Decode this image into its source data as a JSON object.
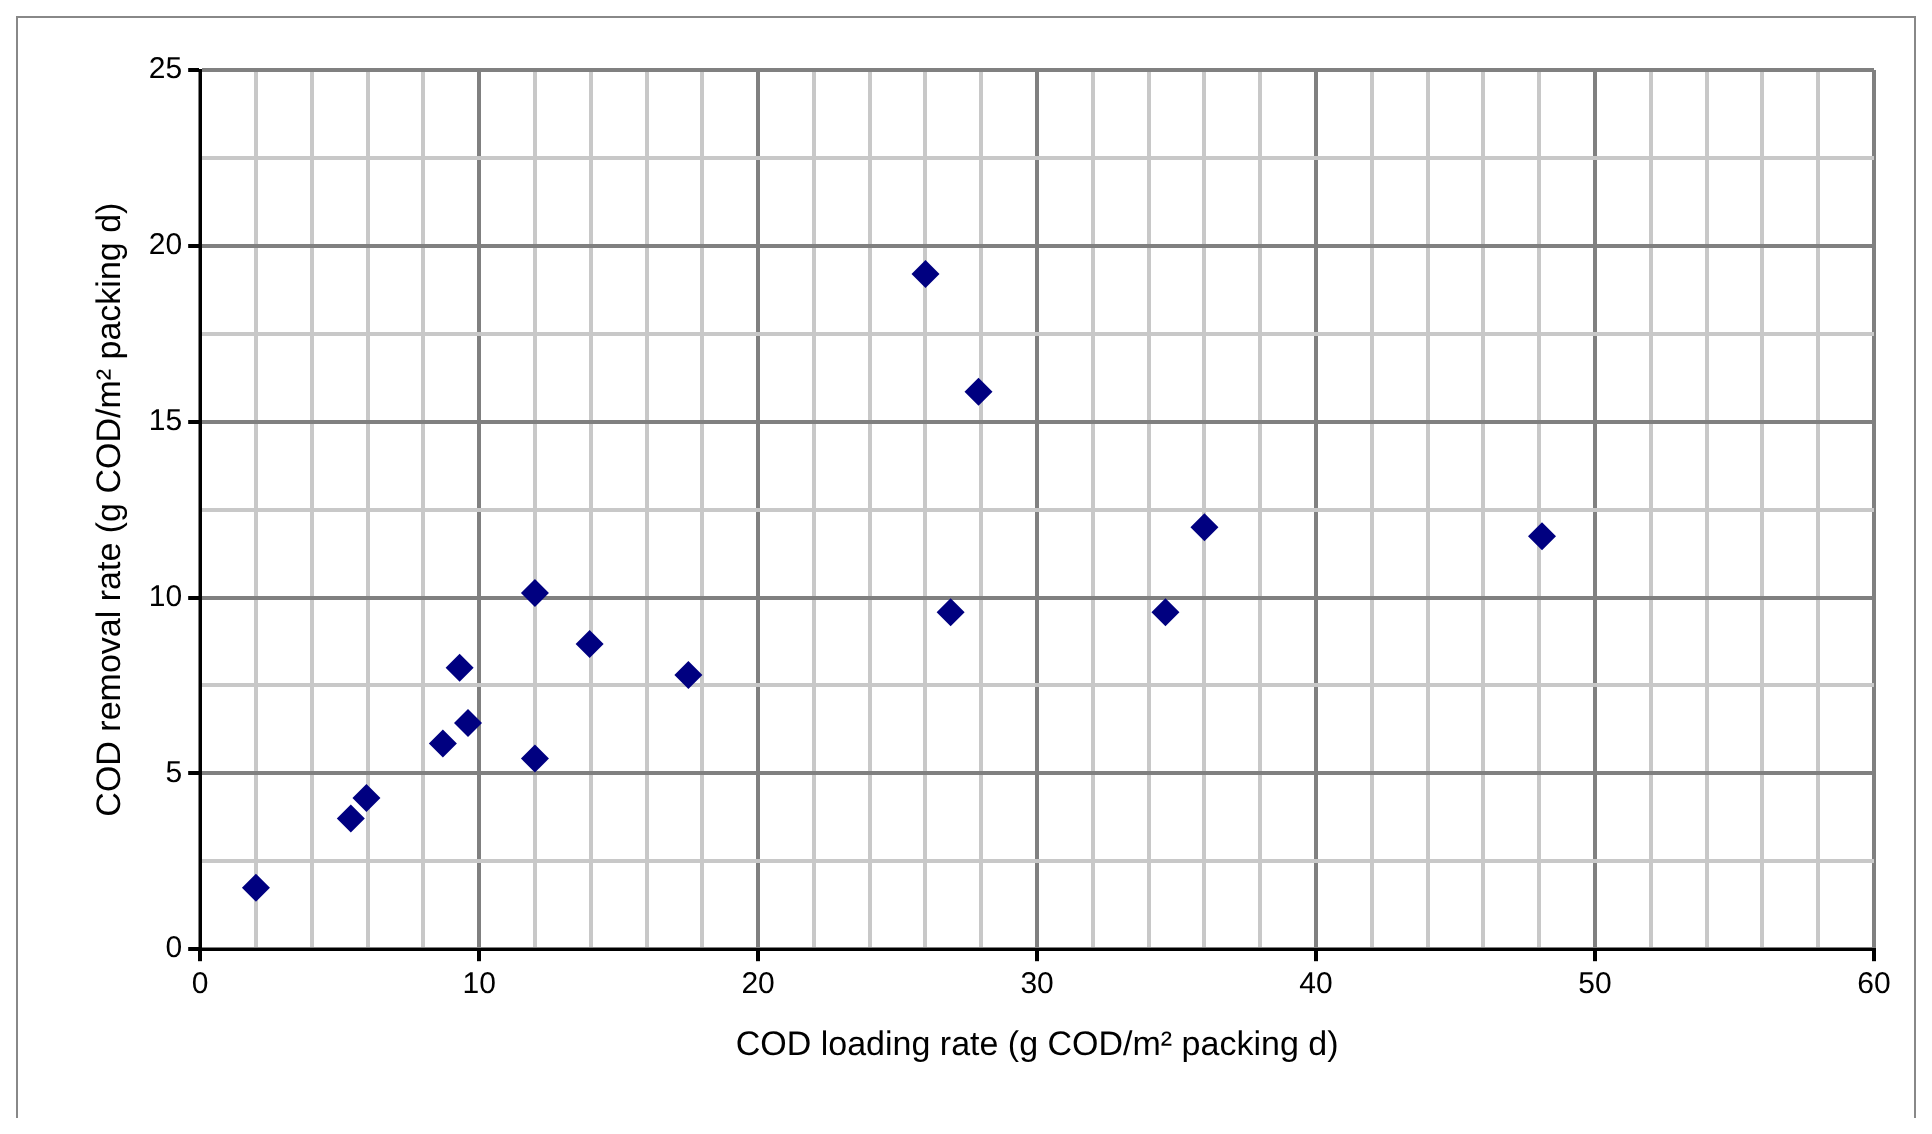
{
  "chart_data": {
    "type": "scatter",
    "xlabel": "COD loading rate (g COD/m² packing d)",
    "ylabel": "COD removal rate (g COD/m² packing d)",
    "x": [
      2,
      5.4,
      5.96,
      8.7,
      9.3,
      9.6,
      12,
      12,
      13.96,
      17.5,
      26,
      27.9,
      26.9,
      34.6,
      36,
      48.1
    ],
    "series": [
      {
        "color": "#000080",
        "values": [
          1.75,
          3.72,
          4.3,
          5.85,
          8.0,
          6.43,
          10.13,
          5.42,
          8.68,
          7.8,
          19.2,
          15.85,
          9.58,
          9.58,
          12.0,
          11.74
        ]
      }
    ],
    "xlim": [
      0,
      60
    ],
    "xticks": [
      0,
      {
        "value": 2,
        "label": null
      },
      {
        "value": 4,
        "label": null
      },
      {
        "value": 6,
        "label": null
      },
      {
        "value": 8,
        "label": null
      },
      10,
      {
        "value": 12,
        "label": null
      },
      {
        "value": 14,
        "label": null
      },
      {
        "value": 16,
        "label": null
      },
      {
        "value": 18,
        "label": null
      },
      20,
      {
        "value": 22,
        "label": null
      },
      {
        "value": 24,
        "label": null
      },
      {
        "value": 26,
        "label": null
      },
      {
        "value": 28,
        "label": null
      },
      30,
      {
        "value": 32,
        "label": null
      },
      {
        "value": 34,
        "label": null
      },
      {
        "value": 36,
        "label": null
      },
      {
        "value": 38,
        "label": null
      },
      40,
      {
        "value": 42,
        "label": null
      },
      {
        "value": 44,
        "label": null
      },
      {
        "value": 46,
        "label": null
      },
      {
        "value": 48,
        "label": null
      },
      50,
      {
        "value": 52,
        "label": null
      },
      {
        "value": 54,
        "label": null
      },
      {
        "value": 56,
        "label": null
      },
      {
        "value": 58,
        "label": null
      },
      60
    ],
    "ylim": [
      0,
      25
    ],
    "yticks": [
      0,
      {
        "value": 2.5,
        "label": null
      },
      5,
      {
        "value": 7.5,
        "label": null
      },
      10,
      {
        "value": 12.5,
        "label": null
      },
      15,
      {
        "value": 17.5,
        "label": null
      },
      20,
      {
        "value": 22.5,
        "label": null
      },
      25
    ],
    "grid": true,
    "legend": false,
    "marker": "diamond"
  }
}
